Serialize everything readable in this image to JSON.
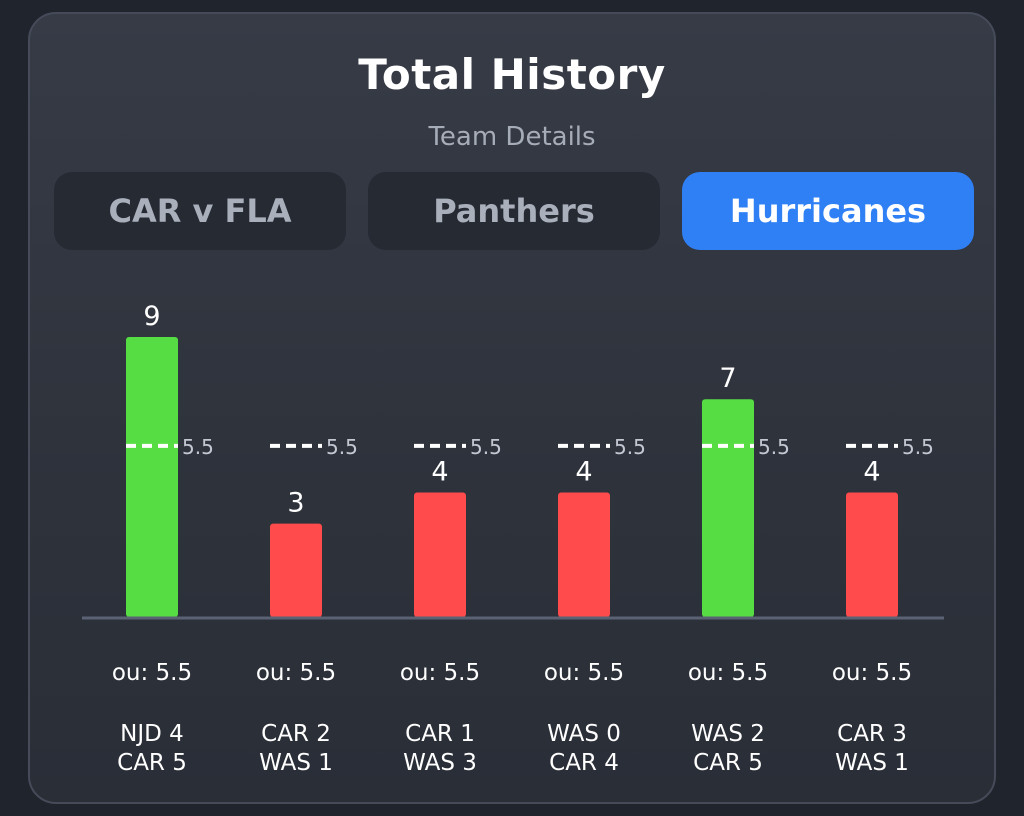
{
  "header": {
    "title": "Total History",
    "subtitle": "Team Details"
  },
  "tabs": [
    {
      "label": "CAR v FLA",
      "active": false
    },
    {
      "label": "Panthers",
      "active": false
    },
    {
      "label": "Hurricanes",
      "active": true
    }
  ],
  "colors": {
    "over": "#57dd44",
    "under": "#ff4b4b",
    "line": "#ffffff",
    "axis": "#5a6274",
    "accent": "#2f80f5"
  },
  "chart_data": {
    "type": "bar",
    "title": "Total History",
    "categories": [
      "NJD 4 / CAR 5",
      "CAR 2 / WAS 1",
      "CAR 1 / WAS 3",
      "WAS 0 / CAR 4",
      "WAS 2 / CAR 5",
      "CAR 3 / WAS 1"
    ],
    "values": [
      9,
      3,
      4,
      4,
      7,
      4
    ],
    "value_labels": [
      "9",
      "3",
      "4",
      "4",
      "7",
      "4"
    ],
    "line_value": 5.5,
    "line_labels": [
      "5.5",
      "5.5",
      "5.5",
      "5.5",
      "5.5",
      "5.5"
    ],
    "ylim": [
      0,
      9
    ],
    "grid": false,
    "legend": "none",
    "games": [
      {
        "ou": "ou: 5.5",
        "team1": "NJD 4",
        "team2": "CAR 5"
      },
      {
        "ou": "ou: 5.5",
        "team1": "CAR 2",
        "team2": "WAS 1"
      },
      {
        "ou": "ou: 5.5",
        "team1": "CAR 1",
        "team2": "WAS 3"
      },
      {
        "ou": "ou: 5.5",
        "team1": "WAS 0",
        "team2": "CAR 4"
      },
      {
        "ou": "ou: 5.5",
        "team1": "WAS 2",
        "team2": "CAR 5"
      },
      {
        "ou": "ou: 5.5",
        "team1": "CAR 3",
        "team2": "WAS 1"
      }
    ]
  }
}
